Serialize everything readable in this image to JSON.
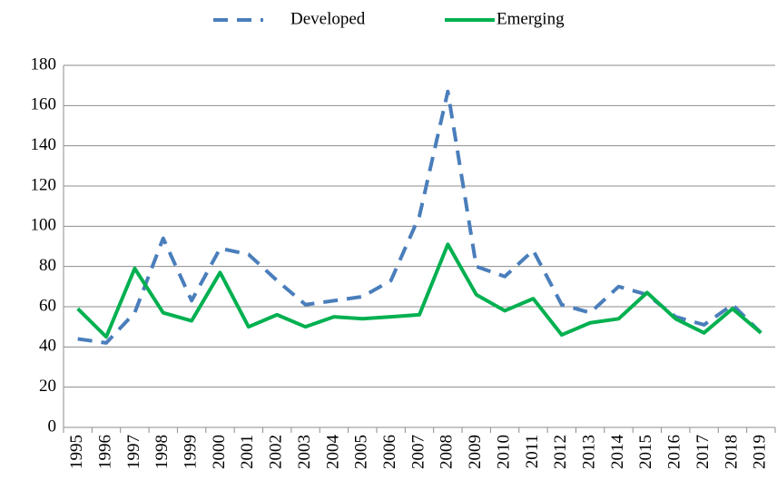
{
  "chart_data": {
    "type": "line",
    "categories": [
      "1995",
      "1996",
      "1997",
      "1998",
      "1999",
      "2000",
      "2001",
      "2002",
      "2003",
      "2004",
      "2005",
      "2006",
      "2007",
      "2008",
      "2009",
      "2010",
      "2011",
      "2012",
      "2013",
      "2014",
      "2015",
      "2016",
      "2017",
      "2018",
      "2019"
    ],
    "series": [
      {
        "name": "Developed",
        "color": "#4a7ebb",
        "dashed": true,
        "values": [
          44,
          42,
          57,
          94,
          63,
          89,
          86,
          73,
          61,
          63,
          65,
          73,
          105,
          167,
          80,
          75,
          88,
          61,
          57,
          70,
          66,
          55,
          51,
          61,
          47
        ]
      },
      {
        "name": "Emerging",
        "color": "#00b050",
        "dashed": false,
        "values": [
          59,
          45,
          79,
          57,
          53,
          77,
          50,
          56,
          50,
          55,
          54,
          55,
          56,
          91,
          66,
          58,
          64,
          46,
          52,
          54,
          67,
          54,
          47,
          59,
          47
        ]
      }
    ],
    "ylim": [
      0,
      180
    ],
    "yticks": [
      0,
      20,
      40,
      60,
      80,
      100,
      120,
      140,
      160,
      180
    ],
    "grid": true,
    "legend": "top"
  }
}
